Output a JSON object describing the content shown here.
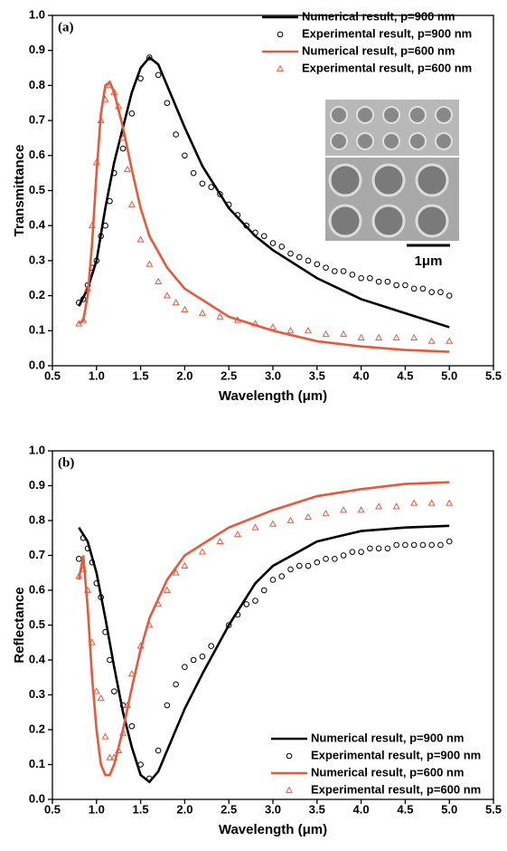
{
  "chart_data": [
    {
      "type": "line",
      "panel_label": "(a)",
      "x_label": "Wavelength (μm)",
      "y_label": "Transmittance",
      "inset_label": "1μm",
      "legend": "upper right",
      "xlim": [
        0.5,
        5.5
      ],
      "xticks": [
        0.5,
        {
          "value": 1.0,
          "label": "1.0"
        },
        1.5,
        {
          "value": 2.0,
          "label": "2.0"
        },
        2.5,
        {
          "value": 3.0,
          "label": "3.0"
        },
        3.5,
        {
          "value": 4.0,
          "label": "4.0"
        },
        4.5,
        {
          "value": 5.0,
          "label": "5.0"
        },
        5.5
      ],
      "ylim": [
        0.0,
        1.0
      ],
      "yticks": [
        {
          "value": 0.0,
          "label": "0.0"
        },
        0.1,
        0.2,
        0.3,
        0.4,
        0.5,
        0.6,
        0.7,
        0.8,
        0.9,
        {
          "value": 1.0,
          "label": "1.0"
        }
      ],
      "series": [
        {
          "name": "Numerical result, p=900 nm",
          "color": "#000000",
          "style": "line",
          "x": [
            0.8,
            0.9,
            1.0,
            1.1,
            1.2,
            1.3,
            1.4,
            1.5,
            1.6,
            1.7,
            1.8,
            2.0,
            2.2,
            2.5,
            2.8,
            3.0,
            3.5,
            4.0,
            4.5,
            5.0
          ],
          "values": [
            0.17,
            0.22,
            0.3,
            0.45,
            0.58,
            0.68,
            0.78,
            0.85,
            0.88,
            0.86,
            0.8,
            0.68,
            0.57,
            0.45,
            0.37,
            0.33,
            0.25,
            0.19,
            0.15,
            0.11
          ]
        },
        {
          "name": "Experimental result, p=900 nm",
          "color": "#000000",
          "style": "circle",
          "x": [
            0.8,
            0.85,
            0.9,
            0.95,
            1.0,
            1.05,
            1.1,
            1.15,
            1.2,
            1.3,
            1.4,
            1.5,
            1.6,
            1.7,
            1.8,
            1.9,
            2.0,
            2.1,
            2.2,
            2.3,
            2.4,
            2.5,
            2.6,
            2.7,
            2.8,
            2.9,
            3.0,
            3.1,
            3.2,
            3.3,
            3.4,
            3.5,
            3.6,
            3.7,
            3.8,
            3.9,
            4.0,
            4.1,
            4.2,
            4.3,
            4.4,
            4.5,
            4.6,
            4.7,
            4.8,
            4.9,
            5.0
          ],
          "values": [
            0.18,
            0.19,
            0.23,
            0.28,
            0.3,
            0.37,
            0.4,
            0.47,
            0.55,
            0.62,
            0.72,
            0.82,
            0.88,
            0.83,
            0.75,
            0.66,
            0.6,
            0.55,
            0.52,
            0.51,
            0.49,
            0.46,
            0.43,
            0.4,
            0.38,
            0.37,
            0.35,
            0.34,
            0.32,
            0.31,
            0.3,
            0.29,
            0.28,
            0.27,
            0.27,
            0.26,
            0.25,
            0.25,
            0.24,
            0.24,
            0.23,
            0.23,
            0.22,
            0.22,
            0.21,
            0.21,
            0.2
          ]
        },
        {
          "name": "Numerical result, p=600 nm",
          "color": "#e65a3c",
          "style": "line",
          "x": [
            0.8,
            0.85,
            0.9,
            0.95,
            1.0,
            1.05,
            1.1,
            1.15,
            1.2,
            1.3,
            1.4,
            1.5,
            1.6,
            1.8,
            2.0,
            2.5,
            3.0,
            3.5,
            4.0,
            4.5,
            5.0
          ],
          "values": [
            0.12,
            0.13,
            0.2,
            0.35,
            0.55,
            0.72,
            0.8,
            0.81,
            0.78,
            0.68,
            0.56,
            0.45,
            0.37,
            0.28,
            0.22,
            0.14,
            0.1,
            0.07,
            0.055,
            0.045,
            0.04
          ]
        },
        {
          "name": "Experimental result, p=600 nm",
          "color": "#e65a3c",
          "style": "triangle",
          "x": [
            0.8,
            0.85,
            0.9,
            0.95,
            1.0,
            1.05,
            1.1,
            1.15,
            1.2,
            1.25,
            1.3,
            1.35,
            1.4,
            1.5,
            1.6,
            1.7,
            1.8,
            1.9,
            2.0,
            2.2,
            2.4,
            2.6,
            2.8,
            3.0,
            3.2,
            3.4,
            3.6,
            3.8,
            4.0,
            4.2,
            4.4,
            4.6,
            4.8,
            5.0
          ],
          "values": [
            0.12,
            0.13,
            0.22,
            0.4,
            0.58,
            0.7,
            0.76,
            0.8,
            0.78,
            0.74,
            0.65,
            0.56,
            0.46,
            0.36,
            0.29,
            0.24,
            0.2,
            0.18,
            0.16,
            0.15,
            0.14,
            0.13,
            0.12,
            0.11,
            0.1,
            0.1,
            0.09,
            0.09,
            0.08,
            0.08,
            0.08,
            0.08,
            0.07,
            0.07
          ]
        }
      ]
    },
    {
      "type": "line",
      "panel_label": "(b)",
      "x_label": "Wavelength (μm)",
      "y_label": "Reflectance",
      "legend": "lower right",
      "xlim": [
        0.5,
        5.5
      ],
      "xticks": [
        0.5,
        {
          "value": 1.0,
          "label": "1.0"
        },
        1.5,
        {
          "value": 2.0,
          "label": "2.0"
        },
        2.5,
        {
          "value": 3.0,
          "label": "3.0"
        },
        3.5,
        {
          "value": 4.0,
          "label": "4.0"
        },
        4.5,
        {
          "value": 5.0,
          "label": "5.0"
        },
        5.5
      ],
      "ylim": [
        0.0,
        1.0
      ],
      "yticks": [
        {
          "value": 0.0,
          "label": "0.0"
        },
        0.1,
        0.2,
        0.3,
        0.4,
        0.5,
        0.6,
        0.7,
        0.8,
        0.9,
        {
          "value": 1.0,
          "label": "1.0"
        }
      ],
      "series": [
        {
          "name": "Numerical result, p=900 nm",
          "color": "#000000",
          "style": "line",
          "x": [
            0.8,
            0.9,
            1.0,
            1.1,
            1.2,
            1.3,
            1.4,
            1.5,
            1.6,
            1.7,
            1.8,
            2.0,
            2.2,
            2.5,
            2.8,
            3.0,
            3.5,
            4.0,
            4.5,
            5.0
          ],
          "values": [
            0.78,
            0.74,
            0.65,
            0.52,
            0.38,
            0.25,
            0.15,
            0.07,
            0.05,
            0.08,
            0.14,
            0.26,
            0.36,
            0.5,
            0.62,
            0.67,
            0.74,
            0.77,
            0.78,
            0.785
          ]
        },
        {
          "name": "Experimental result, p=900 nm",
          "color": "#000000",
          "style": "circle",
          "x": [
            0.8,
            0.85,
            0.9,
            0.95,
            1.0,
            1.05,
            1.1,
            1.15,
            1.2,
            1.3,
            1.4,
            1.5,
            1.6,
            1.7,
            1.8,
            1.9,
            2.0,
            2.1,
            2.2,
            2.3,
            2.5,
            2.6,
            2.7,
            2.8,
            2.9,
            3.0,
            3.1,
            3.2,
            3.3,
            3.4,
            3.5,
            3.6,
            3.7,
            3.8,
            3.9,
            4.0,
            4.1,
            4.2,
            4.3,
            4.4,
            4.5,
            4.6,
            4.7,
            4.8,
            4.9,
            5.0
          ],
          "values": [
            0.69,
            0.75,
            0.72,
            0.68,
            0.62,
            0.58,
            0.48,
            0.4,
            0.31,
            0.27,
            0.21,
            0.1,
            0.06,
            0.14,
            0.27,
            0.33,
            0.38,
            0.4,
            0.41,
            0.44,
            0.5,
            0.53,
            0.56,
            0.57,
            0.6,
            0.63,
            0.64,
            0.66,
            0.67,
            0.67,
            0.68,
            0.69,
            0.69,
            0.7,
            0.71,
            0.71,
            0.72,
            0.72,
            0.72,
            0.73,
            0.73,
            0.73,
            0.73,
            0.73,
            0.73,
            0.74
          ]
        },
        {
          "name": "Numerical result, p=600 nm",
          "color": "#e65a3c",
          "style": "line",
          "x": [
            0.8,
            0.85,
            0.9,
            0.95,
            1.0,
            1.05,
            1.1,
            1.15,
            1.2,
            1.3,
            1.4,
            1.5,
            1.6,
            1.8,
            2.0,
            2.5,
            3.0,
            3.5,
            4.0,
            4.5,
            5.0
          ],
          "values": [
            0.63,
            0.7,
            0.55,
            0.35,
            0.2,
            0.1,
            0.07,
            0.07,
            0.1,
            0.2,
            0.32,
            0.43,
            0.52,
            0.63,
            0.7,
            0.78,
            0.83,
            0.87,
            0.89,
            0.905,
            0.91
          ]
        },
        {
          "name": "Experimental result, p=600 nm",
          "color": "#e65a3c",
          "style": "triangle",
          "x": [
            0.8,
            0.85,
            0.9,
            0.95,
            1.0,
            1.05,
            1.1,
            1.15,
            1.2,
            1.25,
            1.3,
            1.35,
            1.4,
            1.5,
            1.6,
            1.7,
            1.8,
            1.9,
            2.0,
            2.2,
            2.4,
            2.6,
            2.8,
            3.0,
            3.2,
            3.4,
            3.6,
            3.8,
            4.0,
            4.2,
            4.4,
            4.6,
            4.8,
            5.0
          ],
          "values": [
            0.64,
            0.66,
            0.6,
            0.45,
            0.31,
            0.29,
            0.18,
            0.12,
            0.12,
            0.14,
            0.19,
            0.27,
            0.36,
            0.44,
            0.5,
            0.56,
            0.6,
            0.65,
            0.67,
            0.71,
            0.74,
            0.76,
            0.78,
            0.79,
            0.8,
            0.81,
            0.82,
            0.83,
            0.83,
            0.84,
            0.84,
            0.85,
            0.85,
            0.85
          ]
        }
      ]
    }
  ]
}
